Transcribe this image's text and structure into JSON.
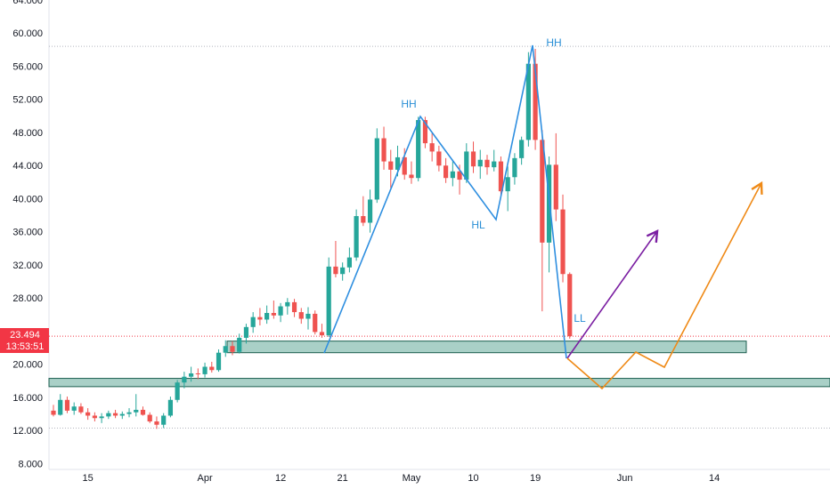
{
  "chart_data": {
    "type": "candlestick",
    "categories": [
      null,
      null,
      null,
      null,
      null,
      "15",
      null,
      null,
      null,
      null,
      null,
      null,
      null,
      null,
      null,
      null,
      null,
      null,
      null,
      null,
      null,
      null,
      "Apr",
      null,
      null,
      null,
      null,
      null,
      null,
      null,
      null,
      null,
      null,
      "12",
      null,
      null,
      null,
      null,
      null,
      null,
      null,
      null,
      "21",
      null,
      null,
      null,
      null,
      null,
      null,
      null,
      null,
      null,
      "May",
      null,
      null,
      null,
      null,
      null,
      null,
      null,
      null,
      "10",
      null,
      null,
      null,
      null,
      null,
      null,
      null,
      null,
      "19",
      null,
      null,
      null,
      null,
      null,
      null,
      null,
      null,
      null,
      null,
      null,
      null,
      "Jun",
      null,
      null,
      null,
      null,
      null,
      null,
      null,
      null,
      null,
      null,
      null,
      null,
      "14",
      null,
      null,
      null,
      null,
      null,
      null,
      null,
      null,
      null,
      null,
      null,
      null,
      null,
      null,
      null,
      null
    ],
    "open": [
      14.5,
      14.0,
      15.8,
      14.5,
      15.0,
      14.3,
      13.9,
      13.6,
      13.8,
      14.2,
      13.9,
      14.1,
      14.3,
      14.6,
      14.0,
      13.2,
      12.8,
      13.9,
      15.8,
      17.9,
      18.6,
      19.0,
      18.9,
      19.8,
      19.4,
      21.5,
      22.3,
      21.6,
      23.3,
      24.6,
      25.8,
      25.5,
      26.3,
      26.0,
      27.1,
      27.6,
      26.4,
      25.6,
      26.2,
      24.0,
      23.6,
      31.9,
      31.0,
      31.8,
      33.0,
      38.0,
      37.2,
      40.0,
      47.4,
      44.6,
      43.6,
      45.1,
      43.0,
      42.6,
      49.6,
      46.8,
      45.8,
      44.1,
      42.6,
      43.4,
      42.4,
      45.8,
      44.0,
      44.8,
      43.9,
      44.6,
      41.0,
      42.7,
      45.0,
      47.2,
      56.4,
      47.2,
      34.8,
      44.2,
      38.8,
      31.0,
      null,
      null,
      null,
      null,
      null,
      null,
      null,
      null,
      null,
      null,
      null,
      null,
      null,
      null,
      null,
      null,
      null,
      null,
      null,
      null,
      null,
      null,
      null,
      null,
      null,
      null,
      null,
      null,
      null,
      null,
      null,
      null,
      null,
      null,
      null,
      null,
      null
    ],
    "high": [
      15.2,
      16.5,
      16.2,
      15.5,
      15.4,
      14.8,
      14.3,
      14.2,
      14.5,
      14.6,
      14.4,
      14.8,
      16.5,
      15.0,
      14.3,
      13.8,
      14.2,
      16.2,
      18.2,
      19.2,
      19.8,
      19.6,
      20.3,
      20.4,
      21.9,
      23.0,
      22.9,
      23.8,
      25.0,
      26.4,
      26.9,
      27.2,
      27.8,
      27.5,
      28.1,
      28.0,
      26.9,
      27.0,
      26.6,
      25.0,
      33.0,
      35.0,
      32.4,
      34.2,
      38.8,
      40.4,
      41.2,
      48.6,
      48.8,
      46.0,
      46.5,
      46.2,
      44.6,
      50.0,
      50.0,
      48.0,
      46.5,
      45.0,
      44.8,
      44.2,
      46.8,
      47.0,
      46.0,
      45.4,
      46.0,
      45.2,
      44.0,
      45.6,
      47.6,
      57.8,
      58.2,
      48.4,
      45.2,
      48.0,
      40.6,
      31.2,
      null,
      null,
      null,
      null,
      null,
      null,
      null,
      null,
      null,
      null,
      null,
      null,
      null,
      null,
      null,
      null,
      null,
      null,
      null,
      null,
      null,
      null,
      null,
      null,
      null,
      null,
      null,
      null,
      null,
      null,
      null,
      null,
      null,
      null,
      null,
      null,
      null
    ],
    "low": [
      13.8,
      13.9,
      14.2,
      14.0,
      14.1,
      13.4,
      13.2,
      13.0,
      13.5,
      13.6,
      13.5,
      13.7,
      13.8,
      13.9,
      13.0,
      12.3,
      12.4,
      13.7,
      15.5,
      17.2,
      18.0,
      18.3,
      18.5,
      19.1,
      19.2,
      21.0,
      21.2,
      21.4,
      22.6,
      23.9,
      24.8,
      25.0,
      25.6,
      25.2,
      26.1,
      25.8,
      25.0,
      24.3,
      23.7,
      23.3,
      23.4,
      30.6,
      30.2,
      31.2,
      32.6,
      36.8,
      36.0,
      39.6,
      43.6,
      41.4,
      42.8,
      42.4,
      41.9,
      42.2,
      46.2,
      44.6,
      43.4,
      42.0,
      41.6,
      40.6,
      42.0,
      43.2,
      42.5,
      43.0,
      43.4,
      40.2,
      38.6,
      41.8,
      44.2,
      46.4,
      46.0,
      26.5,
      31.2,
      37.4,
      30.0,
      23.2,
      null,
      null,
      null,
      null,
      null,
      null,
      null,
      null,
      null,
      null,
      null,
      null,
      null,
      null,
      null,
      null,
      null,
      null,
      null,
      null,
      null,
      null,
      null,
      null,
      null,
      null,
      null,
      null,
      null,
      null,
      null,
      null,
      null,
      null,
      null,
      null,
      null
    ],
    "close": [
      14.0,
      15.8,
      14.5,
      15.0,
      14.3,
      13.9,
      13.6,
      13.8,
      14.2,
      13.9,
      14.1,
      14.3,
      14.6,
      14.0,
      13.2,
      12.8,
      13.9,
      15.8,
      17.9,
      18.6,
      19.0,
      18.9,
      19.8,
      19.4,
      21.5,
      22.3,
      21.6,
      23.3,
      24.6,
      25.8,
      25.5,
      26.3,
      26.0,
      27.1,
      27.6,
      26.4,
      25.6,
      26.2,
      24.0,
      23.6,
      31.9,
      31.0,
      31.8,
      33.0,
      38.0,
      37.2,
      40.0,
      47.4,
      44.6,
      43.6,
      45.1,
      43.0,
      42.6,
      49.6,
      46.8,
      45.8,
      44.1,
      42.6,
      43.4,
      42.4,
      45.8,
      44.0,
      44.8,
      43.9,
      44.6,
      41.0,
      42.7,
      45.0,
      47.2,
      56.4,
      47.2,
      34.8,
      44.2,
      38.8,
      31.0,
      23.494,
      null,
      null,
      null,
      null,
      null,
      null,
      null,
      null,
      null,
      null,
      null,
      null,
      null,
      null,
      null,
      null,
      null,
      null,
      null,
      null,
      null,
      null,
      null,
      null,
      null,
      null,
      null,
      null,
      null,
      null,
      null,
      null,
      null,
      null,
      null,
      null,
      null
    ],
    "up_color": "#26a69a",
    "down_color": "#ef5350",
    "ylim": [
      7.4,
      64.1
    ],
    "yticks": [
      {
        "value": 8,
        "label": "8.000"
      },
      {
        "value": 12,
        "label": "12.000"
      },
      {
        "value": 16,
        "label": "16.000"
      },
      {
        "value": 20,
        "label": "20.000"
      },
      {
        "value": 28,
        "label": "28.000"
      },
      {
        "value": 32,
        "label": "32.000"
      },
      {
        "value": 36,
        "label": "36.000"
      },
      {
        "value": 40,
        "label": "40.000"
      },
      {
        "value": 44,
        "label": "44.000"
      },
      {
        "value": 48,
        "label": "48.000"
      },
      {
        "value": 52,
        "label": "52.000"
      },
      {
        "value": 56,
        "label": "56.000"
      },
      {
        "value": 60,
        "label": "60.000"
      },
      {
        "value": 64,
        "label": "64.000"
      }
    ],
    "grid": false,
    "countdown": "13:53:51",
    "zones": [
      {
        "low": 21.5,
        "high": 22.9
      },
      {
        "low": 17.4,
        "high": 18.4
      }
    ],
    "levels": [
      58.5,
      12.4
    ],
    "annotations": [
      "HH",
      "HL",
      "HH",
      "LL"
    ]
  }
}
